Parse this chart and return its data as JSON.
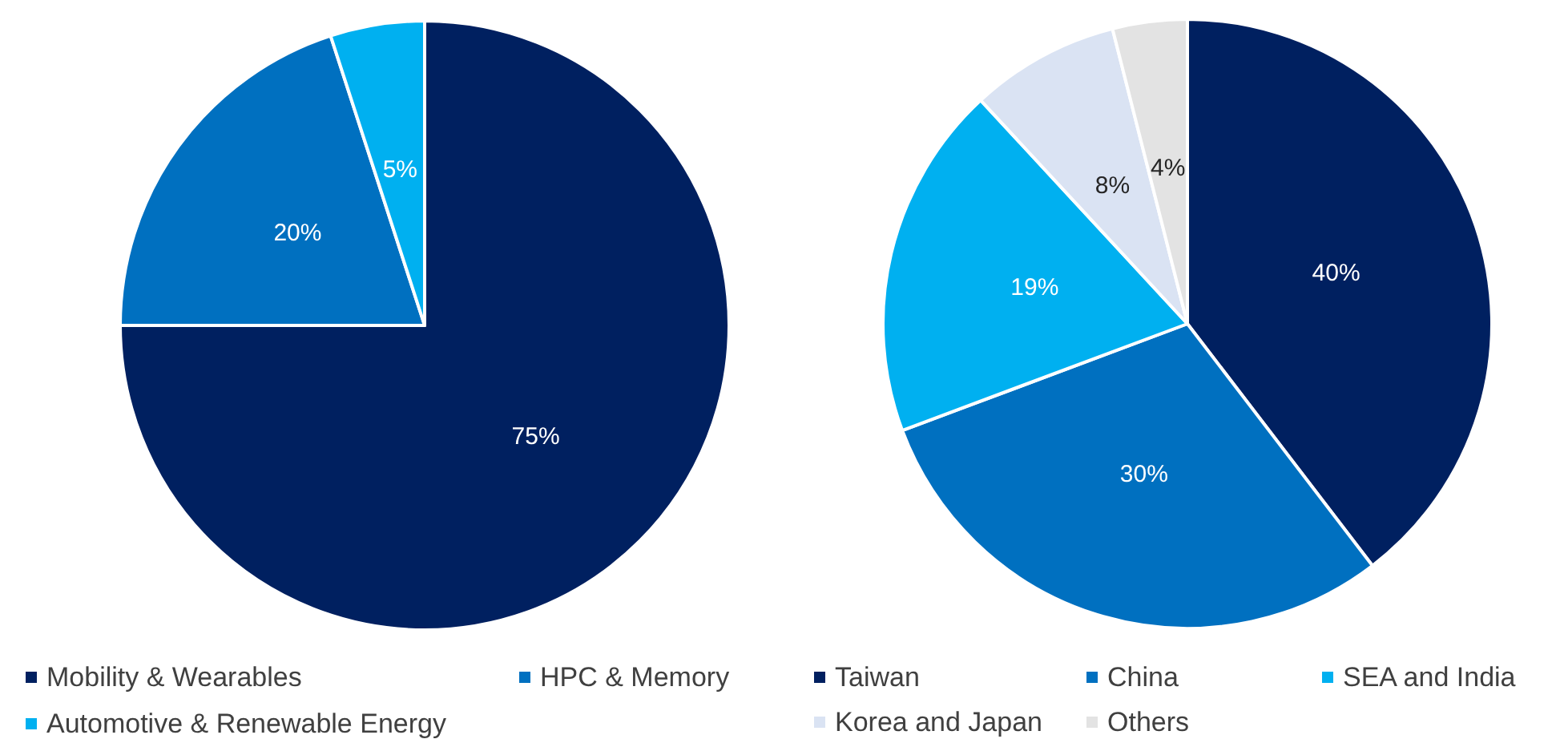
{
  "chart_data": [
    {
      "type": "pie",
      "categories": [
        "Mobility & Wearables",
        "HPC & Memory",
        "Automotive & Renewable Energy"
      ],
      "values": [
        75,
        20,
        5
      ],
      "value_labels": [
        "75%",
        "20%",
        "5%"
      ],
      "colors": [
        "#002060",
        "#0070c0",
        "#00b0f0"
      ],
      "legend": "bottom"
    },
    {
      "type": "pie",
      "categories": [
        "Taiwan",
        "China",
        "SEA and India",
        "Korea and Japan",
        "Others"
      ],
      "values": [
        40,
        30,
        19,
        8,
        4
      ],
      "value_labels": [
        "40%",
        "30%",
        "19%",
        "8%",
        "4%"
      ],
      "colors": [
        "#002060",
        "#0070c0",
        "#00b0f0",
        "#dae3f3",
        "#e3e3e3"
      ],
      "legend": "bottom"
    }
  ]
}
